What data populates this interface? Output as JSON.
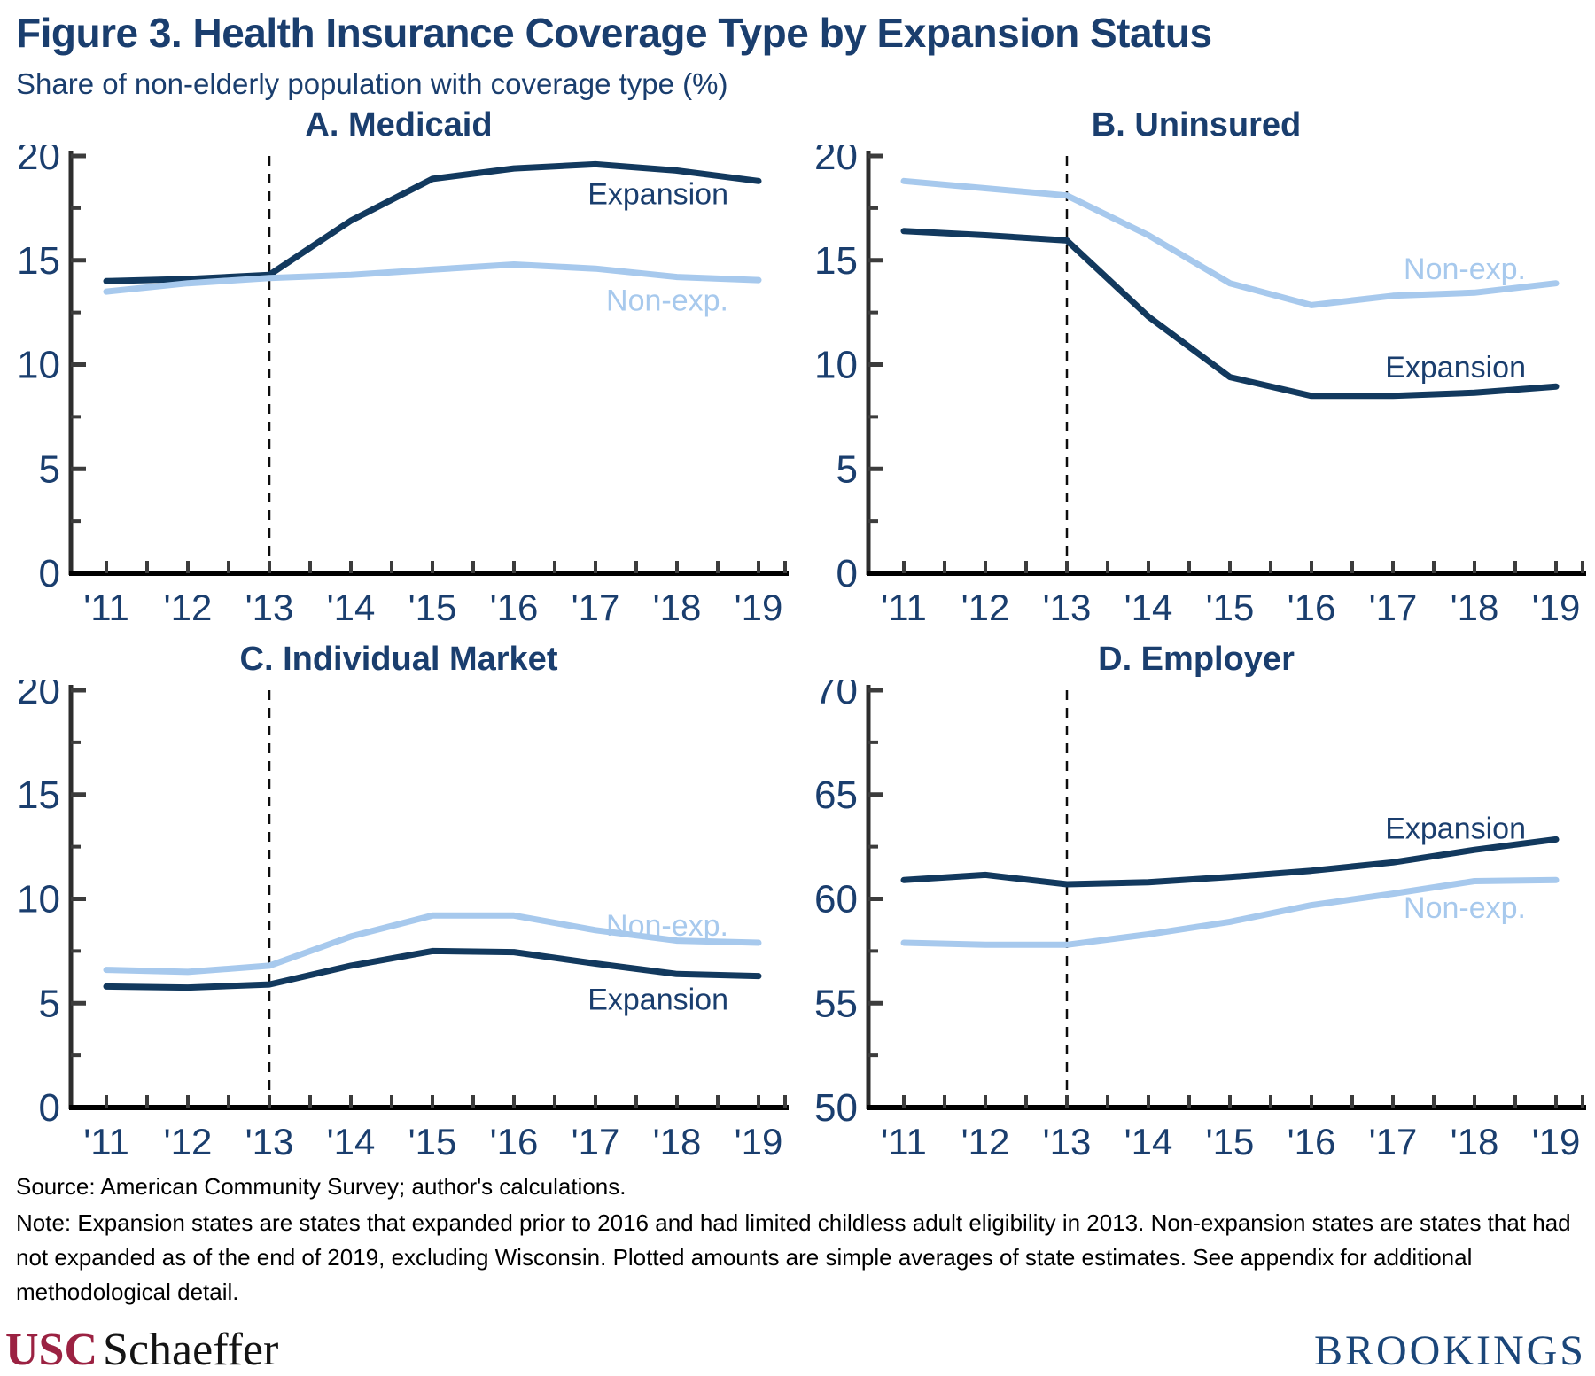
{
  "figure": {
    "title": "Figure 3. Health Insurance Coverage Type by Expansion Status",
    "subtitle": "Share of non-elderly population with coverage type (%)"
  },
  "colors": {
    "expansion": "#12395E",
    "non_expansion": "#A7C9ED",
    "navy_text": "#1A3E6E",
    "x_axis": "#000000",
    "y_axis": "#2D2D2D",
    "tick": "#3C3C3C",
    "dashed_line": "#0D0D0D"
  },
  "chart_data": [
    {
      "panel": "A",
      "title": "A. Medicaid",
      "type": "line",
      "ylim": [
        0,
        20
      ],
      "yticks": [
        0,
        5,
        10,
        15,
        20
      ],
      "x": [
        "'11",
        "'12",
        "'13",
        "'14",
        "'15",
        "'16",
        "'17",
        "'18",
        "'19"
      ],
      "dashed_x": "'13",
      "legend_position": "inline-right",
      "grid": false,
      "series": [
        {
          "name": "Expansion",
          "label_y": 18.2,
          "values": [
            14.0,
            14.1,
            14.3,
            16.9,
            18.9,
            19.4,
            19.6,
            19.3,
            18.8
          ]
        },
        {
          "name": "Non-exp.",
          "label_y": 13.1,
          "values": [
            13.5,
            13.9,
            14.15,
            14.3,
            14.55,
            14.8,
            14.6,
            14.2,
            14.05
          ]
        }
      ]
    },
    {
      "panel": "B",
      "title": "B. Uninsured",
      "type": "line",
      "ylim": [
        0,
        20
      ],
      "yticks": [
        0,
        5,
        10,
        15,
        20
      ],
      "x": [
        "'11",
        "'12",
        "'13",
        "'14",
        "'15",
        "'16",
        "'17",
        "'18",
        "'19"
      ],
      "dashed_x": "'13",
      "legend_position": "inline-right",
      "grid": false,
      "series": [
        {
          "name": "Expansion",
          "label_y": 9.9,
          "values": [
            16.4,
            16.2,
            15.95,
            12.3,
            9.4,
            8.5,
            8.5,
            8.65,
            8.95
          ]
        },
        {
          "name": "Non-exp.",
          "label_y": 14.6,
          "values": [
            18.8,
            18.45,
            18.1,
            16.2,
            13.9,
            12.85,
            13.3,
            13.45,
            13.9
          ]
        }
      ]
    },
    {
      "panel": "C",
      "title": "C. Individual Market",
      "type": "line",
      "ylim": [
        0,
        20
      ],
      "yticks": [
        0,
        5,
        10,
        15,
        20
      ],
      "x": [
        "'11",
        "'12",
        "'13",
        "'14",
        "'15",
        "'16",
        "'17",
        "'18",
        "'19"
      ],
      "dashed_x": "'13",
      "legend_position": "inline-right",
      "grid": false,
      "series": [
        {
          "name": "Expansion",
          "label_y": 5.2,
          "values": [
            5.8,
            5.75,
            5.9,
            6.8,
            7.5,
            7.45,
            6.9,
            6.4,
            6.3
          ]
        },
        {
          "name": "Non-exp.",
          "label_y": 8.75,
          "values": [
            6.6,
            6.5,
            6.8,
            8.2,
            9.2,
            9.2,
            8.5,
            8.0,
            7.9
          ]
        }
      ]
    },
    {
      "panel": "D",
      "title": "D. Employer",
      "type": "line",
      "ylim": [
        50,
        70
      ],
      "yticks": [
        50,
        55,
        60,
        65,
        70
      ],
      "x": [
        "'11",
        "'12",
        "'13",
        "'14",
        "'15",
        "'16",
        "'17",
        "'18",
        "'19"
      ],
      "dashed_x": "'13",
      "legend_position": "inline-right",
      "grid": false,
      "series": [
        {
          "name": "Expansion",
          "label_y": 63.4,
          "values": [
            60.9,
            61.15,
            60.7,
            60.8,
            61.05,
            61.35,
            61.75,
            62.35,
            62.85
          ]
        },
        {
          "name": "Non-exp.",
          "label_y": 59.6,
          "values": [
            57.9,
            57.8,
            57.8,
            58.3,
            58.9,
            59.7,
            60.25,
            60.85,
            60.9
          ]
        }
      ]
    }
  ],
  "footer": {
    "source": "Source: American Community Survey; author's calculations.",
    "note": "Note: Expansion states are states that expanded prior to 2016 and had limited childless adult eligibility in 2013. Non-expansion states are states that had not expanded as of the end of 2019, excluding Wisconsin. Plotted amounts are simple averages of state estimates. See appendix for additional methodological detail.",
    "logo_usc": "USC",
    "logo_schaeffer": "Schaeffer",
    "logo_brookings": "BROOKINGS"
  }
}
